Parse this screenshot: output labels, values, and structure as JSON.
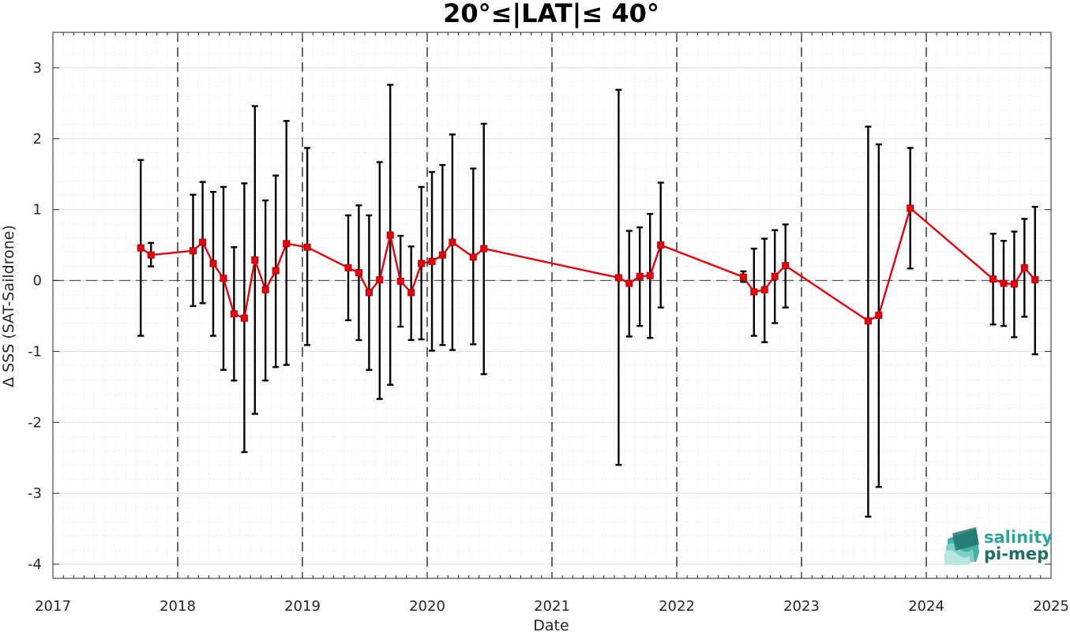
{
  "chart_data": {
    "type": "line",
    "title": "20°≤|LAT|≤ 40°",
    "xlabel": "Date",
    "ylabel": "Δ SSS (SAT-Saildrone)",
    "xlim": [
      "2017-01-01",
      "2025-01-01"
    ],
    "ylim": [
      -4.2,
      3.5
    ],
    "x_ticks": [
      "2017",
      "2018",
      "2019",
      "2020",
      "2021",
      "2022",
      "2023",
      "2024",
      "2025"
    ],
    "y_ticks": [
      3,
      2,
      1,
      0,
      -1,
      -2,
      -3,
      -4
    ],
    "y_tick_labels": [
      "3",
      "2",
      "1",
      "0",
      "-1",
      "-2",
      "-3",
      "-4"
    ],
    "grid": "minor dotted",
    "reference_line_y": 0,
    "year_separators": [
      "2018",
      "2019",
      "2020",
      "2021",
      "2022",
      "2023",
      "2024"
    ],
    "line_color": "#e8000b",
    "errorbar_color": "#000000",
    "series": [
      {
        "points": [
          {
            "x": "2017-09-15",
            "y": 0.46,
            "lo": -0.78,
            "hi": 1.7
          },
          {
            "x": "2017-10-15",
            "y": 0.36,
            "lo": 0.2,
            "hi": 0.53
          },
          {
            "x": "2018-02-15",
            "y": 0.42,
            "lo": -0.36,
            "hi": 1.21
          },
          {
            "x": "2018-03-15",
            "y": 0.54,
            "lo": -0.32,
            "hi": 1.39
          },
          {
            "x": "2018-04-15",
            "y": 0.24,
            "lo": -0.78,
            "hi": 1.25
          },
          {
            "x": "2018-05-15",
            "y": 0.03,
            "lo": -1.26,
            "hi": 1.32
          },
          {
            "x": "2018-06-15",
            "y": -0.47,
            "lo": -1.41,
            "hi": 0.47
          },
          {
            "x": "2018-07-15",
            "y": -0.53,
            "lo": -2.42,
            "hi": 1.37
          },
          {
            "x": "2018-08-15",
            "y": 0.29,
            "lo": -1.88,
            "hi": 2.46
          },
          {
            "x": "2018-09-15",
            "y": -0.13,
            "lo": -1.41,
            "hi": 1.13
          },
          {
            "x": "2018-10-15",
            "y": 0.14,
            "lo": -1.22,
            "hi": 1.48
          },
          {
            "x": "2018-11-15",
            "y": 0.52,
            "lo": -1.19,
            "hi": 2.25
          },
          {
            "x": "2019-01-15",
            "y": 0.47,
            "lo": -0.91,
            "hi": 1.87
          },
          {
            "x": "2019-05-15",
            "y": 0.18,
            "lo": -0.56,
            "hi": 0.92
          },
          {
            "x": "2019-06-15",
            "y": 0.11,
            "lo": -0.84,
            "hi": 1.06
          },
          {
            "x": "2019-07-15",
            "y": -0.17,
            "lo": -1.26,
            "hi": 0.92
          },
          {
            "x": "2019-08-15",
            "y": 0.01,
            "lo": -1.67,
            "hi": 1.67
          },
          {
            "x": "2019-09-15",
            "y": 0.64,
            "lo": -1.47,
            "hi": 2.76
          },
          {
            "x": "2019-10-15",
            "y": -0.01,
            "lo": -0.65,
            "hi": 0.63
          },
          {
            "x": "2019-11-15",
            "y": -0.17,
            "lo": -0.84,
            "hi": 0.48
          },
          {
            "x": "2019-12-15",
            "y": 0.24,
            "lo": -0.83,
            "hi": 1.32
          },
          {
            "x": "2020-01-15",
            "y": 0.27,
            "lo": -0.99,
            "hi": 1.53
          },
          {
            "x": "2020-02-15",
            "y": 0.36,
            "lo": -0.91,
            "hi": 1.63
          },
          {
            "x": "2020-03-15",
            "y": 0.54,
            "lo": -0.98,
            "hi": 2.06
          },
          {
            "x": "2020-05-15",
            "y": 0.33,
            "lo": -0.9,
            "hi": 1.58
          },
          {
            "x": "2020-06-15",
            "y": 0.45,
            "lo": -1.32,
            "hi": 2.21
          },
          {
            "x": "2021-07-15",
            "y": 0.04,
            "lo": -2.6,
            "hi": 2.69
          },
          {
            "x": "2021-08-15",
            "y": -0.04,
            "lo": -0.79,
            "hi": 0.7
          },
          {
            "x": "2021-09-15",
            "y": 0.06,
            "lo": -0.64,
            "hi": 0.75
          },
          {
            "x": "2021-10-15",
            "y": 0.07,
            "lo": -0.81,
            "hi": 0.94
          },
          {
            "x": "2021-11-15",
            "y": 0.5,
            "lo": -0.38,
            "hi": 1.38
          },
          {
            "x": "2022-07-15",
            "y": 0.05,
            "lo": -0.02,
            "hi": 0.13
          },
          {
            "x": "2022-08-15",
            "y": -0.16,
            "lo": -0.78,
            "hi": 0.45
          },
          {
            "x": "2022-09-15",
            "y": -0.13,
            "lo": -0.87,
            "hi": 0.59
          },
          {
            "x": "2022-10-15",
            "y": 0.06,
            "lo": -0.6,
            "hi": 0.71
          },
          {
            "x": "2022-11-15",
            "y": 0.21,
            "lo": -0.38,
            "hi": 0.79
          },
          {
            "x": "2023-07-15",
            "y": -0.57,
            "lo": -3.33,
            "hi": 2.17
          },
          {
            "x": "2023-08-15",
            "y": -0.49,
            "lo": -2.91,
            "hi": 1.92
          },
          {
            "x": "2023-11-15",
            "y": 1.02,
            "lo": 0.17,
            "hi": 1.87
          },
          {
            "x": "2024-07-15",
            "y": 0.02,
            "lo": -0.62,
            "hi": 0.66
          },
          {
            "x": "2024-08-15",
            "y": -0.04,
            "lo": -0.64,
            "hi": 0.56
          },
          {
            "x": "2024-09-15",
            "y": -0.05,
            "lo": -0.8,
            "hi": 0.69
          },
          {
            "x": "2024-10-15",
            "y": 0.18,
            "lo": -0.51,
            "hi": 0.87
          },
          {
            "x": "2024-11-15",
            "y": 0.01,
            "lo": -1.04,
            "hi": 1.04
          }
        ]
      }
    ]
  },
  "logo": {
    "line1": "salinity",
    "line2": "pi-mep",
    "color1": "#2aa69b",
    "color2": "#1f6f66"
  }
}
